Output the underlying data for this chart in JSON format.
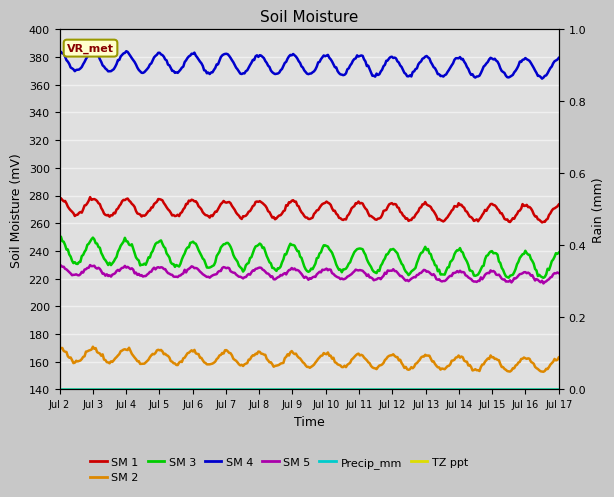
{
  "title": "Soil Moisture",
  "xlabel": "Time",
  "ylabel_left": "Soil Moisture (mV)",
  "ylabel_right": "Rain (mm)",
  "ylim_left": [
    140,
    400
  ],
  "ylim_right": [
    0.0,
    1.0
  ],
  "x_ticks": [
    0,
    1,
    2,
    3,
    4,
    5,
    6,
    7,
    8,
    9,
    10,
    11,
    12,
    13,
    14,
    15
  ],
  "x_tick_labels": [
    "Jul 2",
    "Jul 3",
    "Jul 4",
    "Jul 5",
    "Jul 6",
    "Jul 7",
    "Jul 8",
    "Jul 9",
    "Jul 10",
    "Jul 11",
    "Jul 12",
    "Jul 13",
    "Jul 14",
    "Jul 15",
    "Jul 16",
    "Jul 17"
  ],
  "figure_bg": "#c8c8c8",
  "plot_bg": "#e0e0e0",
  "grid_color": "#f0f0f0",
  "sm1_color": "#cc0000",
  "sm2_color": "#dd8800",
  "sm3_color": "#00cc00",
  "sm4_color": "#0000cc",
  "sm5_color": "#aa00aa",
  "precip_color": "#00cccc",
  "tzppt_color": "#dddd00",
  "legend_labels": [
    "SM 1",
    "SM 2",
    "SM 3",
    "SM 4",
    "SM 5",
    "Precip_mm",
    "TZ ppt"
  ],
  "vr_met_label": "VR_met",
  "vr_met_text_color": "#880000",
  "vr_met_bg_color": "#ffffcc",
  "vr_met_border_color": "#999900",
  "sm1_base": 272,
  "sm1_amp": 6,
  "sm1_trend": -0.35,
  "sm2_base": 165,
  "sm2_amp": 5,
  "sm2_trend": -0.5,
  "sm3_base": 240,
  "sm3_amp": 9,
  "sm3_trend": -0.7,
  "sm4_base": 377,
  "sm4_amp": 7,
  "sm4_trend": -0.35,
  "sm5_base": 226,
  "sm5_amp": 3.5,
  "sm5_trend": -0.35
}
